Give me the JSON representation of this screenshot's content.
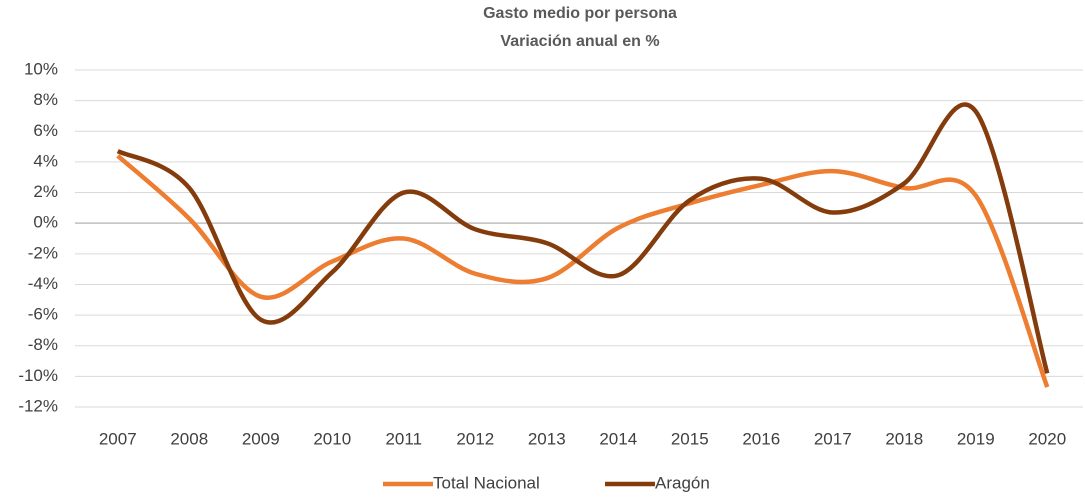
{
  "chart_data": {
    "type": "line",
    "title": "Gasto medio por persona",
    "subtitle": "Variación anual en %",
    "categories": [
      "2007",
      "2008",
      "2009",
      "2010",
      "2011",
      "2012",
      "2013",
      "2014",
      "2015",
      "2016",
      "2017",
      "2018",
      "2019",
      "2020"
    ],
    "series": [
      {
        "name": "Total Nacional",
        "color": "#ED7D31",
        "values": [
          4.4,
          0.3,
          -4.8,
          -2.5,
          -1.0,
          -3.3,
          -3.6,
          -0.3,
          1.3,
          2.5,
          3.4,
          2.3,
          1.8,
          -10.7
        ]
      },
      {
        "name": "Aragón",
        "color": "#843C0C",
        "values": [
          4.7,
          2.3,
          -6.3,
          -3.2,
          2.0,
          -0.4,
          -1.3,
          -3.4,
          1.5,
          2.9,
          0.7,
          2.6,
          7.3,
          -9.8
        ]
      }
    ],
    "ylim": [
      -12,
      10
    ],
    "yticks": [
      {
        "value": -12,
        "label": "-12%"
      },
      {
        "value": -10,
        "label": "-10%"
      },
      {
        "value": -8,
        "label": "-8%"
      },
      {
        "value": -6,
        "label": "-6%"
      },
      {
        "value": -4,
        "label": "-4%"
      },
      {
        "value": -2,
        "label": "-2%"
      },
      {
        "value": 0,
        "label": "0%"
      },
      {
        "value": 2,
        "label": "2%"
      },
      {
        "value": 4,
        "label": "4%"
      },
      {
        "value": 6,
        "label": "6%"
      },
      {
        "value": 8,
        "label": "8%"
      },
      {
        "value": 10,
        "label": "10%"
      }
    ],
    "grid": true,
    "legend": "bottom"
  }
}
